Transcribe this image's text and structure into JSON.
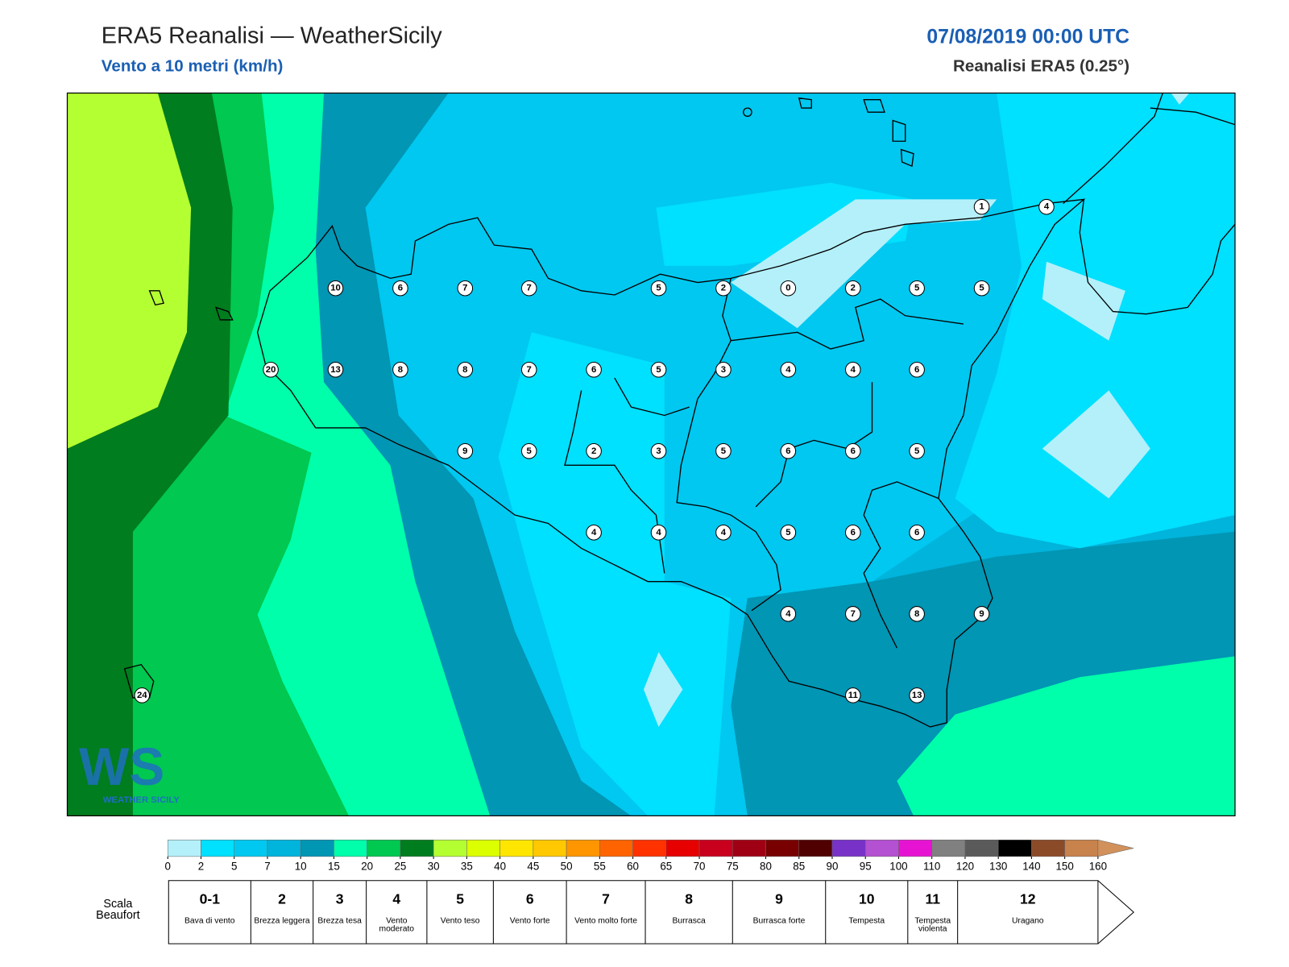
{
  "header": {
    "title": "ERA5 Reanalisi — WeatherSicily",
    "subtitle": "Vento a 10 metri (km/h)",
    "date": "07/08/2019 00:00 UTC",
    "source": "Reanalisi ERA5 (0.25°)"
  },
  "stations": [
    10,
    6,
    7,
    7,
    5,
    2,
    0,
    2,
    5,
    5,
    20,
    13,
    8,
    8,
    7,
    6,
    5,
    3,
    4,
    4,
    6,
    9,
    5,
    2,
    3,
    5,
    6,
    6,
    5,
    4,
    4,
    4,
    5,
    6,
    6,
    4,
    7,
    8,
    9,
    11,
    13,
    1,
    4,
    24
  ],
  "logo": {
    "mark": "WS",
    "text": "Weather Sicily"
  },
  "colorbar": {
    "ticks": [
      0,
      2,
      5,
      7,
      10,
      15,
      20,
      25,
      30,
      35,
      40,
      45,
      50,
      55,
      60,
      65,
      70,
      75,
      80,
      85,
      90,
      95,
      100,
      110,
      120,
      130,
      140,
      150,
      160
    ],
    "colors": [
      "#b4f0fa",
      "#00e0ff",
      "#00c8f0",
      "#00b4dc",
      "#0096b4",
      "#00ffaa",
      "#00c850",
      "#007d1e",
      "#b4ff32",
      "#dcff00",
      "#ffe600",
      "#ffc800",
      "#ff9600",
      "#ff6400",
      "#ff3200",
      "#e60000",
      "#c8001e",
      "#a00014",
      "#780000",
      "#500000",
      "#7832c8",
      "#b450d2",
      "#e614d2",
      "#808080",
      "#5a5a5a",
      "#000000",
      "#8c4b28",
      "#c8824b"
    ],
    "extend_color": "#d2915a"
  },
  "beaufort": {
    "label": "Scala Beaufort",
    "levels": [
      {
        "force": "0-1",
        "name": "Bava di vento"
      },
      {
        "force": "2",
        "name": "Brezza leggera"
      },
      {
        "force": "3",
        "name": "Brezza tesa"
      },
      {
        "force": "4",
        "name": "Vento moderato"
      },
      {
        "force": "5",
        "name": "Vento teso"
      },
      {
        "force": "6",
        "name": "Vento forte"
      },
      {
        "force": "7",
        "name": "Vento molto forte"
      },
      {
        "force": "8",
        "name": "Burrasca"
      },
      {
        "force": "9",
        "name": "Burrasca forte"
      },
      {
        "force": "10",
        "name": "Tempesta"
      },
      {
        "force": "11",
        "name": "Tempesta violenta"
      },
      {
        "force": "12",
        "name": "Uragano"
      }
    ]
  }
}
